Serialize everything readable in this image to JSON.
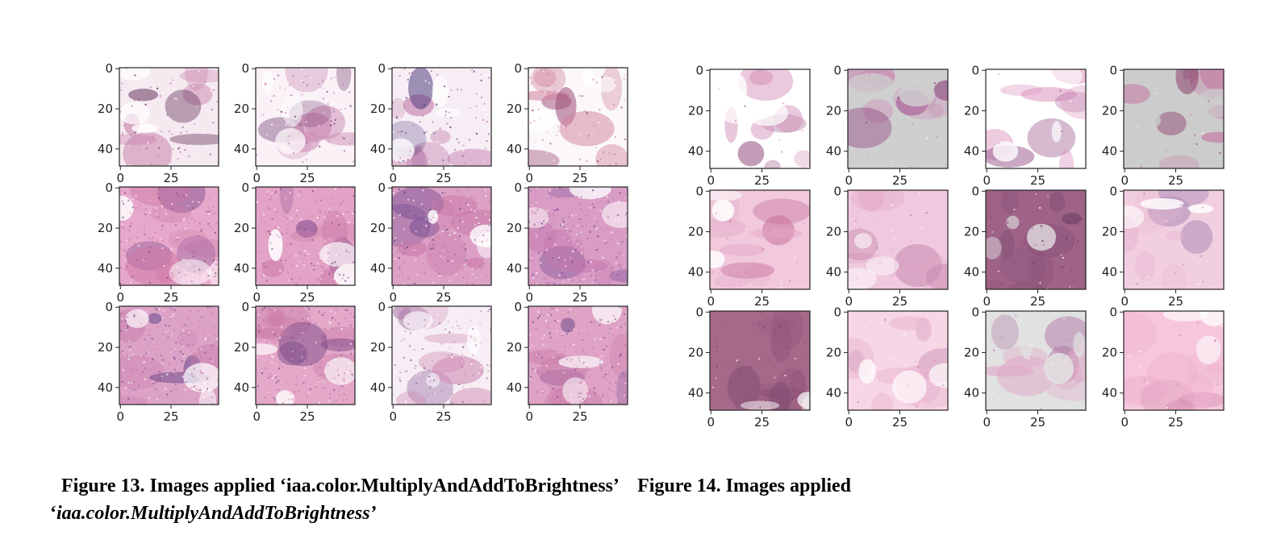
{
  "figures": [
    {
      "id": "figure13",
      "rows": 3,
      "cols": 4,
      "y_ticks": [
        "0",
        "20",
        "40"
      ],
      "x_ticks": [
        "0",
        "25"
      ],
      "panels": [
        {
          "base": "#f6eaf1",
          "tissue": "#c47aa6",
          "dark": "#5a2650",
          "noise": 0.35,
          "bg": "#ffffff"
        },
        {
          "base": "#faf2f7",
          "tissue": "#c985b0",
          "dark": "#6a3068",
          "noise": 0.35,
          "bg": "#ffffff"
        },
        {
          "base": "#f7eef5",
          "tissue": "#bf78a8",
          "dark": "#4b3a7a",
          "noise": 0.4,
          "bg": "#ffffff"
        },
        {
          "base": "#fbf7fa",
          "tissue": "#d2849f",
          "dark": "#9c4c74",
          "noise": 0.3,
          "bg": "#ffffff"
        },
        {
          "base": "#e7a9cb",
          "tissue": "#cf7aa8",
          "dark": "#7d4d8d",
          "noise": 0.75,
          "bg": "#ffffff"
        },
        {
          "base": "#e3a3c6",
          "tissue": "#c97aa7",
          "dark": "#7f4a8c",
          "noise": 0.75,
          "bg": "#ffffff"
        },
        {
          "base": "#dca1c5",
          "tissue": "#c878a8",
          "dark": "#6e4a8e",
          "noise": 0.8,
          "bg": "#ffffff"
        },
        {
          "base": "#d99dc5",
          "tissue": "#c477ad",
          "dark": "#6d4b92",
          "noise": 0.85,
          "bg": "#ffffff"
        },
        {
          "base": "#dda3c7",
          "tissue": "#c57aa9",
          "dark": "#70508f",
          "noise": 0.85,
          "bg": "#ffffff"
        },
        {
          "base": "#e4a8c9",
          "tissue": "#c97aa6",
          "dark": "#7a4b86",
          "noise": 0.75,
          "bg": "#ffffff"
        },
        {
          "base": "#f6eef4",
          "tissue": "#d08db5",
          "dark": "#8a5a95",
          "noise": 0.45,
          "bg": "#ffffff"
        },
        {
          "base": "#dfa3c6",
          "tissue": "#c97aa8",
          "dark": "#73508e",
          "noise": 0.8,
          "bg": "#ffffff"
        }
      ]
    },
    {
      "id": "figure14",
      "rows": 3,
      "cols": 4,
      "y_ticks": [
        "0",
        "20",
        "40"
      ],
      "x_ticks": [
        "0",
        "25"
      ],
      "panels": [
        {
          "base": "#ffffff",
          "tissue": "#d48fb7",
          "dark": "#8a3f74",
          "noise": 0.05,
          "bg": "#ffffff"
        },
        {
          "base": "#cfcfcf",
          "tissue": "#c87fb0",
          "dark": "#8b3a7c",
          "noise": 0.05,
          "bg": "#cfcfcf"
        },
        {
          "base": "#ffffff",
          "tissue": "#dd99c1",
          "dark": "#9a5a8f",
          "noise": 0.05,
          "bg": "#ffffff"
        },
        {
          "base": "#cccccc",
          "tissue": "#c46f9c",
          "dark": "#8c3f6c",
          "noise": 0.05,
          "bg": "#cccccc"
        },
        {
          "base": "#f1c8dc",
          "tissue": "#e3a6c6",
          "dark": "#c46e98",
          "noise": 0.1,
          "bg": "#ffffff"
        },
        {
          "base": "#f0c9df",
          "tissue": "#e2a8c9",
          "dark": "#b8779f",
          "noise": 0.1,
          "bg": "#ffffff"
        },
        {
          "base": "#9e6386",
          "tissue": "#8c5378",
          "dark": "#6a3e66",
          "noise": 0.2,
          "bg": "#d9d3d7"
        },
        {
          "base": "#f2cfe0",
          "tissue": "#e6b6cf",
          "dark": "#a889b5",
          "noise": 0.12,
          "bg": "#ffffff"
        },
        {
          "base": "#a56989",
          "tissue": "#93587c",
          "dark": "#734269",
          "noise": 0.2,
          "bg": "#f2eef0"
        },
        {
          "base": "#f7d6e6",
          "tissue": "#eab7d1",
          "dark": "#c587ad",
          "noise": 0.1,
          "bg": "#ffffff"
        },
        {
          "base": "#e1e1e1",
          "tissue": "#e0a3c6",
          "dark": "#b17aa7",
          "noise": 0.08,
          "bg": "#e3e3e3"
        },
        {
          "base": "#f6c7dc",
          "tissue": "#eeb1cd",
          "dark": "#d088ad",
          "noise": 0.08,
          "bg": "#ffffff"
        }
      ]
    }
  ],
  "caption": {
    "part1": "Figure 13. Images applied ‘iaa.color.MultiplyAndAddToBrightness’",
    "part2": "Figure 14. Images applied",
    "part3_quote": "‘",
    "part3": "iaa.color.MultiplyAndAddToBrightness’"
  }
}
